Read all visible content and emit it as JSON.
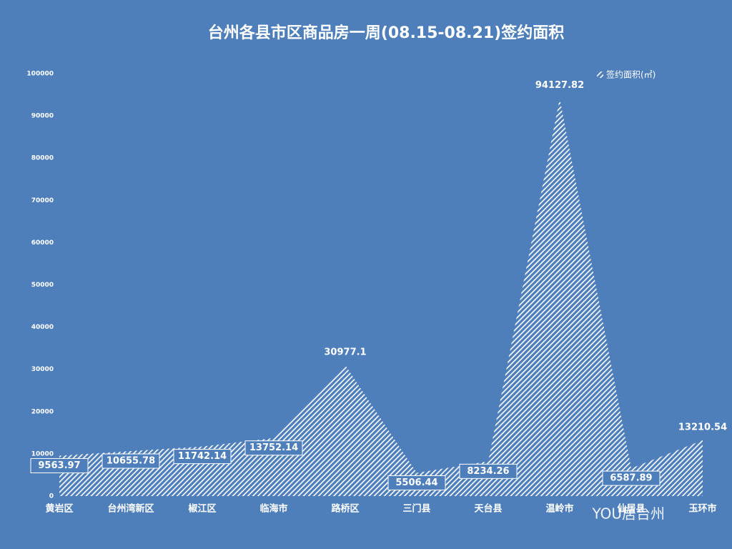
{
  "chart_data": {
    "type": "area",
    "title": "台州各县市区商品房一周(08.15-08.21)签约面积",
    "categories": [
      "黄岩区",
      "台州湾新区",
      "椒江区",
      "临海市",
      "路桥区",
      "三门县",
      "天台县",
      "温岭市",
      "仙居县",
      "玉环市"
    ],
    "series": [
      {
        "name": "签约面积(㎡)",
        "color": "#ffffff",
        "values": [
          9563.97,
          10655.78,
          11742.14,
          13752.14,
          30977.1,
          5506.44,
          8234.26,
          94127.82,
          6587.89,
          13210.54
        ]
      }
    ],
    "ylim": [
      0,
      100000
    ],
    "yticks": [
      0,
      10000,
      20000,
      30000,
      40000,
      50000,
      60000,
      70000,
      80000,
      90000,
      100000
    ],
    "legend": "top-right",
    "watermark": "YOU居台州"
  }
}
